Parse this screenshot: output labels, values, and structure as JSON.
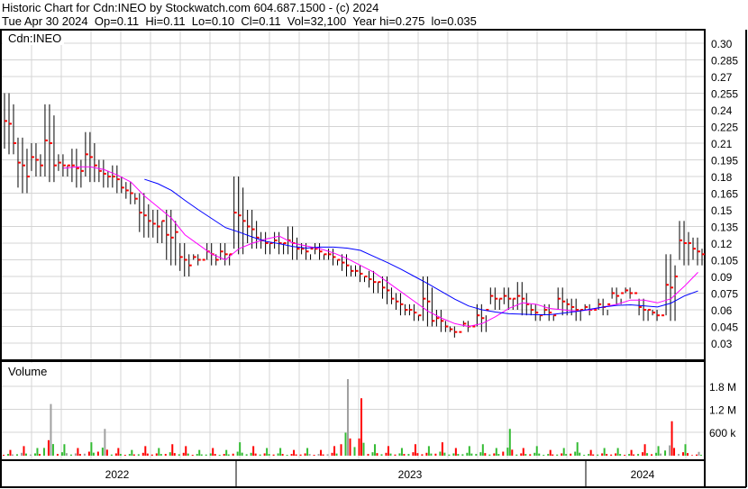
{
  "header": {
    "line1": "Historic Chart for Cdn:INEO by Stockwatch.com 604.687.1500 - (c) 2024",
    "line2": "Tue Apr 30 2024  Op=0.11  Hi=0.11  Lo=0.10  Cl=0.11  Vol=32,100  Year hi=0.275  lo=0.035"
  },
  "chart_data": [
    {
      "type": "ohlc",
      "title": "Cdn:INEO",
      "ylim": [
        0.03,
        0.3
      ],
      "yticks": [
        "0.30",
        "0.285",
        "0.27",
        "0.255",
        "0.24",
        "0.225",
        "0.21",
        "0.195",
        "0.18",
        "0.165",
        "0.15",
        "0.135",
        "0.12",
        "0.105",
        "0.09",
        "0.075",
        "0.06",
        "0.045",
        "0.03"
      ],
      "high": [
        0.255,
        0.215,
        0.21,
        0.245,
        0.2,
        0.205,
        0.22,
        0.195,
        0.19,
        0.175,
        0.165,
        0.15,
        0.15,
        0.12,
        0.11,
        0.12,
        0.12,
        0.18,
        0.15,
        0.13,
        0.13,
        0.135,
        0.12,
        0.12,
        0.115,
        0.11,
        0.1,
        0.095,
        0.09,
        0.075,
        0.065,
        0.09,
        0.06,
        0.045,
        0.05,
        0.065,
        0.08,
        0.08,
        0.085,
        0.065,
        0.065,
        0.08,
        0.07,
        0.065,
        0.07,
        0.08,
        0.08,
        0.07,
        0.06,
        0.11,
        0.14,
        0.125
      ],
      "low": [
        0.2,
        0.165,
        0.18,
        0.175,
        0.18,
        0.17,
        0.175,
        0.17,
        0.165,
        0.155,
        0.125,
        0.12,
        0.1,
        0.09,
        0.1,
        0.1,
        0.1,
        0.11,
        0.115,
        0.11,
        0.11,
        0.105,
        0.105,
        0.105,
        0.1,
        0.09,
        0.085,
        0.075,
        0.065,
        0.055,
        0.05,
        0.045,
        0.04,
        0.035,
        0.04,
        0.04,
        0.06,
        0.06,
        0.055,
        0.05,
        0.05,
        0.055,
        0.05,
        0.055,
        0.055,
        0.065,
        0.07,
        0.05,
        0.05,
        0.05,
        0.1,
        0.1
      ],
      "close": [
        0.21,
        0.18,
        0.19,
        0.19,
        0.19,
        0.185,
        0.19,
        0.18,
        0.17,
        0.16,
        0.14,
        0.14,
        0.13,
        0.1,
        0.105,
        0.105,
        0.11,
        0.14,
        0.125,
        0.12,
        0.12,
        0.115,
        0.115,
        0.11,
        0.105,
        0.095,
        0.09,
        0.085,
        0.07,
        0.06,
        0.055,
        0.05,
        0.045,
        0.04,
        0.045,
        0.06,
        0.07,
        0.07,
        0.065,
        0.055,
        0.055,
        0.065,
        0.06,
        0.06,
        0.065,
        0.075,
        0.075,
        0.06,
        0.055,
        0.09,
        0.12,
        0.11
      ],
      "series_colors": {
        "bars": "#000000",
        "close_tick": "#ff0000",
        "ma_short": "#ff00ff",
        "ma_long": "#0000ff"
      }
    },
    {
      "type": "bar",
      "title": "Volume",
      "ylim": [
        0,
        2100000
      ],
      "yticks": [
        "1.8 M",
        "1.2 M",
        "600 k"
      ],
      "values": [
        150,
        250,
        200,
        1350,
        300,
        200,
        350,
        700,
        200,
        150,
        250,
        200,
        300,
        250,
        150,
        200,
        150,
        350,
        250,
        200,
        200,
        150,
        200,
        150,
        250,
        2000,
        1500,
        300,
        250,
        200,
        300,
        250,
        350,
        200,
        250,
        300,
        200,
        700,
        200,
        250,
        150,
        200,
        350,
        150,
        200,
        200,
        150,
        300,
        250,
        900,
        300,
        100
      ],
      "colors": [
        "r",
        "r",
        "g",
        "y",
        "g",
        "r",
        "g",
        "y",
        "r",
        "g",
        "r",
        "g",
        "r",
        "r",
        "g",
        "r",
        "g",
        "g",
        "r",
        "g",
        "g",
        "r",
        "g",
        "r",
        "r",
        "y",
        "r",
        "g",
        "r",
        "g",
        "r",
        "g",
        "r",
        "r",
        "g",
        "g",
        "g",
        "g",
        "r",
        "g",
        "r",
        "g",
        "g",
        "r",
        "g",
        "g",
        "r",
        "r",
        "g",
        "r",
        "g",
        "y"
      ]
    },
    {
      "type": "axis",
      "xticks": [
        "2022",
        "2023",
        "2024"
      ]
    }
  ]
}
